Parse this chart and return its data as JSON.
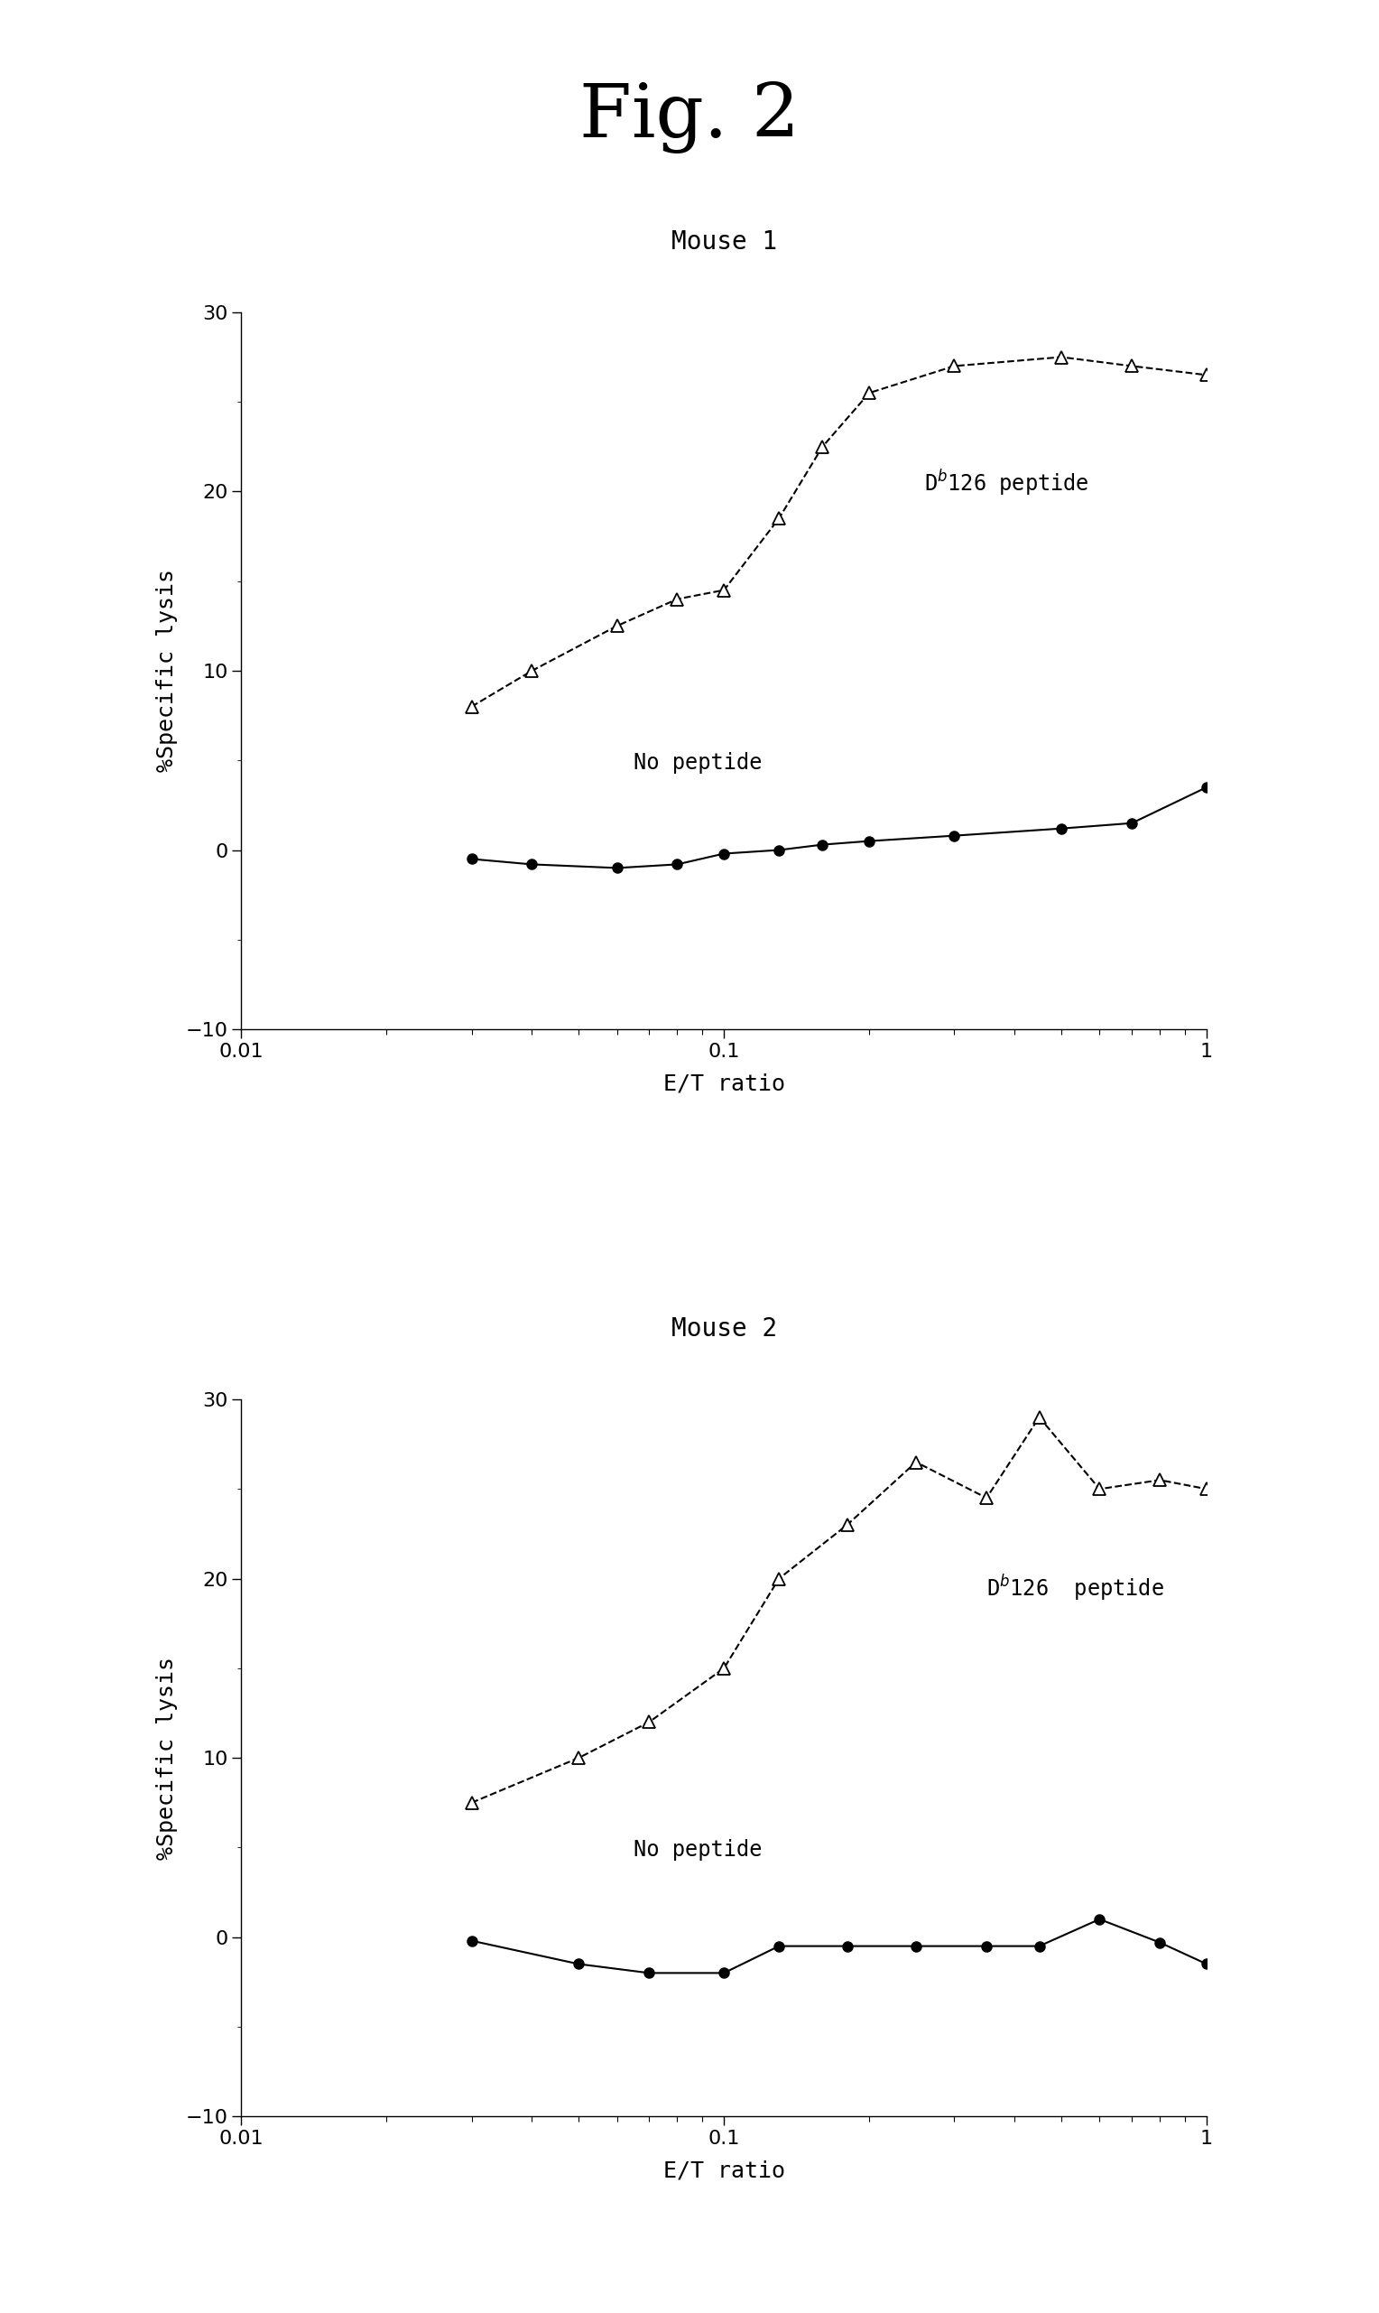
{
  "title": "Fig. 2",
  "title_fontsize": 60,
  "subplot_title_fontsize": 20,
  "axis_label_fontsize": 18,
  "tick_label_fontsize": 16,
  "annotation_fontsize": 17,
  "mouse1_title": "Mouse 1",
  "mouse2_title": "Mouse 2",
  "xlabel": "E/T ratio",
  "ylabel": "%Specific lysis",
  "mouse1_peptide_x": [
    0.03,
    0.04,
    0.06,
    0.08,
    0.1,
    0.13,
    0.16,
    0.2,
    0.3,
    0.5,
    0.7,
    1.0
  ],
  "mouse1_peptide_y": [
    8.0,
    10.0,
    12.5,
    14.0,
    14.5,
    18.5,
    22.5,
    25.5,
    27.0,
    27.5,
    27.0,
    26.5
  ],
  "mouse1_nopeptide_x": [
    0.03,
    0.04,
    0.06,
    0.08,
    0.1,
    0.13,
    0.16,
    0.2,
    0.3,
    0.5,
    0.7,
    1.0
  ],
  "mouse1_nopeptide_y": [
    -0.5,
    -0.8,
    -1.0,
    -0.8,
    -0.2,
    0.0,
    0.3,
    0.5,
    0.8,
    1.2,
    1.5,
    3.5
  ],
  "mouse2_peptide_x": [
    0.03,
    0.05,
    0.07,
    0.1,
    0.13,
    0.18,
    0.25,
    0.35,
    0.45,
    0.6,
    0.8,
    1.0
  ],
  "mouse2_peptide_y": [
    7.5,
    10.0,
    12.0,
    15.0,
    20.0,
    23.0,
    26.5,
    24.5,
    29.0,
    25.0,
    25.5,
    25.0
  ],
  "mouse2_nopeptide_x": [
    0.03,
    0.05,
    0.07,
    0.1,
    0.13,
    0.18,
    0.25,
    0.35,
    0.45,
    0.6,
    0.8,
    1.0
  ],
  "mouse2_nopeptide_y": [
    -0.2,
    -1.5,
    -2.0,
    -2.0,
    -0.5,
    -0.5,
    -0.5,
    -0.5,
    -0.5,
    1.0,
    -0.3,
    -1.5
  ],
  "ylim": [
    -10,
    30
  ],
  "yticks": [
    -10,
    0,
    10,
    20,
    30
  ],
  "xlim": [
    0.01,
    1.0
  ],
  "peptide_label_1": "D$^b$126 peptide",
  "nopeptide_label_1": "No peptide",
  "peptide_label_2": "D$^b$126  peptide",
  "nopeptide_label_2": "No peptide",
  "background_color": "#ffffff",
  "line_color": "#000000"
}
